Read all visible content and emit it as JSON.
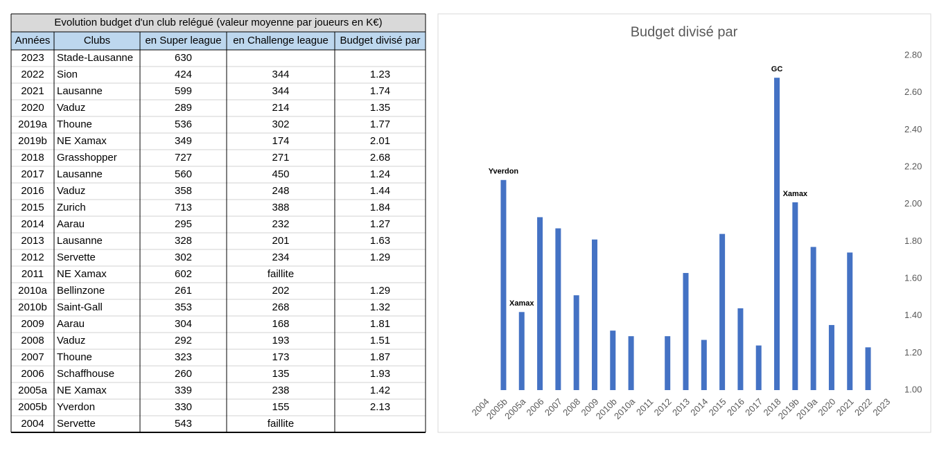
{
  "table": {
    "title": "Evolution budget d'un club relégué (valeur moyenne par joueurs en K€)",
    "header": [
      "Années",
      "Clubs",
      "en Super league",
      "en Challenge league",
      "Budget divisé par"
    ],
    "rows": [
      [
        "2023",
        "Stade-Lausanne",
        630,
        null,
        null
      ],
      [
        "2022",
        "Sion",
        424,
        344,
        1.23
      ],
      [
        "2021",
        "Lausanne",
        599,
        344,
        1.74
      ],
      [
        "2020",
        "Vaduz",
        289,
        214,
        1.35
      ],
      [
        "2019a",
        "Thoune",
        536,
        302,
        1.77
      ],
      [
        "2019b",
        "NE Xamax",
        349,
        174,
        2.01
      ],
      [
        "2018",
        "Grasshopper",
        727,
        271,
        2.68
      ],
      [
        "2017",
        "Lausanne",
        560,
        450,
        1.24
      ],
      [
        "2016",
        "Vaduz",
        358,
        248,
        1.44
      ],
      [
        "2015",
        "Zurich",
        713,
        388,
        1.84
      ],
      [
        "2014",
        "Aarau",
        295,
        232,
        1.27
      ],
      [
        "2013",
        "Lausanne",
        328,
        201,
        1.63
      ],
      [
        "2012",
        "Servette",
        302,
        234,
        1.29
      ],
      [
        "2011",
        "NE Xamax",
        602,
        "faillite",
        null
      ],
      [
        "2010a",
        "Bellinzone",
        261,
        202,
        1.29
      ],
      [
        "2010b",
        "Saint-Gall",
        353,
        268,
        1.32
      ],
      [
        "2009",
        "Aarau",
        304,
        168,
        1.81
      ],
      [
        "2008",
        "Vaduz",
        292,
        193,
        1.51
      ],
      [
        "2007",
        "Thoune",
        323,
        173,
        1.87
      ],
      [
        "2006",
        "Schaffhouse",
        260,
        135,
        1.93
      ],
      [
        "2005a",
        "NE Xamax",
        339,
        238,
        1.42
      ],
      [
        "2005b",
        "Yverdon",
        330,
        155,
        2.13
      ],
      [
        "2004",
        "Servette",
        543,
        "faillite",
        null
      ]
    ]
  },
  "chart_data": {
    "type": "bar",
    "title": "Budget divisé par",
    "categories": [
      "2004",
      "2005b",
      "2005a",
      "2006",
      "2007",
      "2008",
      "2009",
      "2010b",
      "2010a",
      "2011",
      "2012",
      "2013",
      "2014",
      "2015",
      "2016",
      "2017",
      "2018",
      "2019b",
      "2019a",
      "2020",
      "2021",
      "2022",
      "2023"
    ],
    "values": [
      null,
      2.13,
      1.42,
      1.93,
      1.87,
      1.51,
      1.81,
      1.32,
      1.29,
      null,
      1.29,
      1.63,
      1.27,
      1.84,
      1.44,
      1.24,
      2.68,
      2.01,
      1.77,
      1.35,
      1.74,
      1.23,
      null
    ],
    "color": "#4472c4",
    "ylim": [
      1,
      2.8
    ],
    "yticks": [
      {
        "value": 1,
        "label": "1.00"
      },
      {
        "value": 1.2,
        "label": "1.20"
      },
      {
        "value": 1.4,
        "label": "1.40"
      },
      {
        "value": 1.6,
        "label": "1.60"
      },
      {
        "value": 1.8,
        "label": "1.80"
      },
      {
        "value": 2,
        "label": "2.00"
      },
      {
        "value": 2.2,
        "label": "2.20"
      },
      {
        "value": 2.4,
        "label": "2.40"
      },
      {
        "value": 2.6,
        "label": "2.60"
      },
      {
        "value": 2.8,
        "label": "2.80"
      }
    ],
    "grid": false,
    "annotations": [
      {
        "text": "Yverdon",
        "x": "2005b"
      },
      {
        "text": "Xamax",
        "x": "2005a"
      },
      {
        "text": "GC",
        "x": "2018"
      },
      {
        "text": "Xamax",
        "x": "2019b"
      }
    ]
  }
}
